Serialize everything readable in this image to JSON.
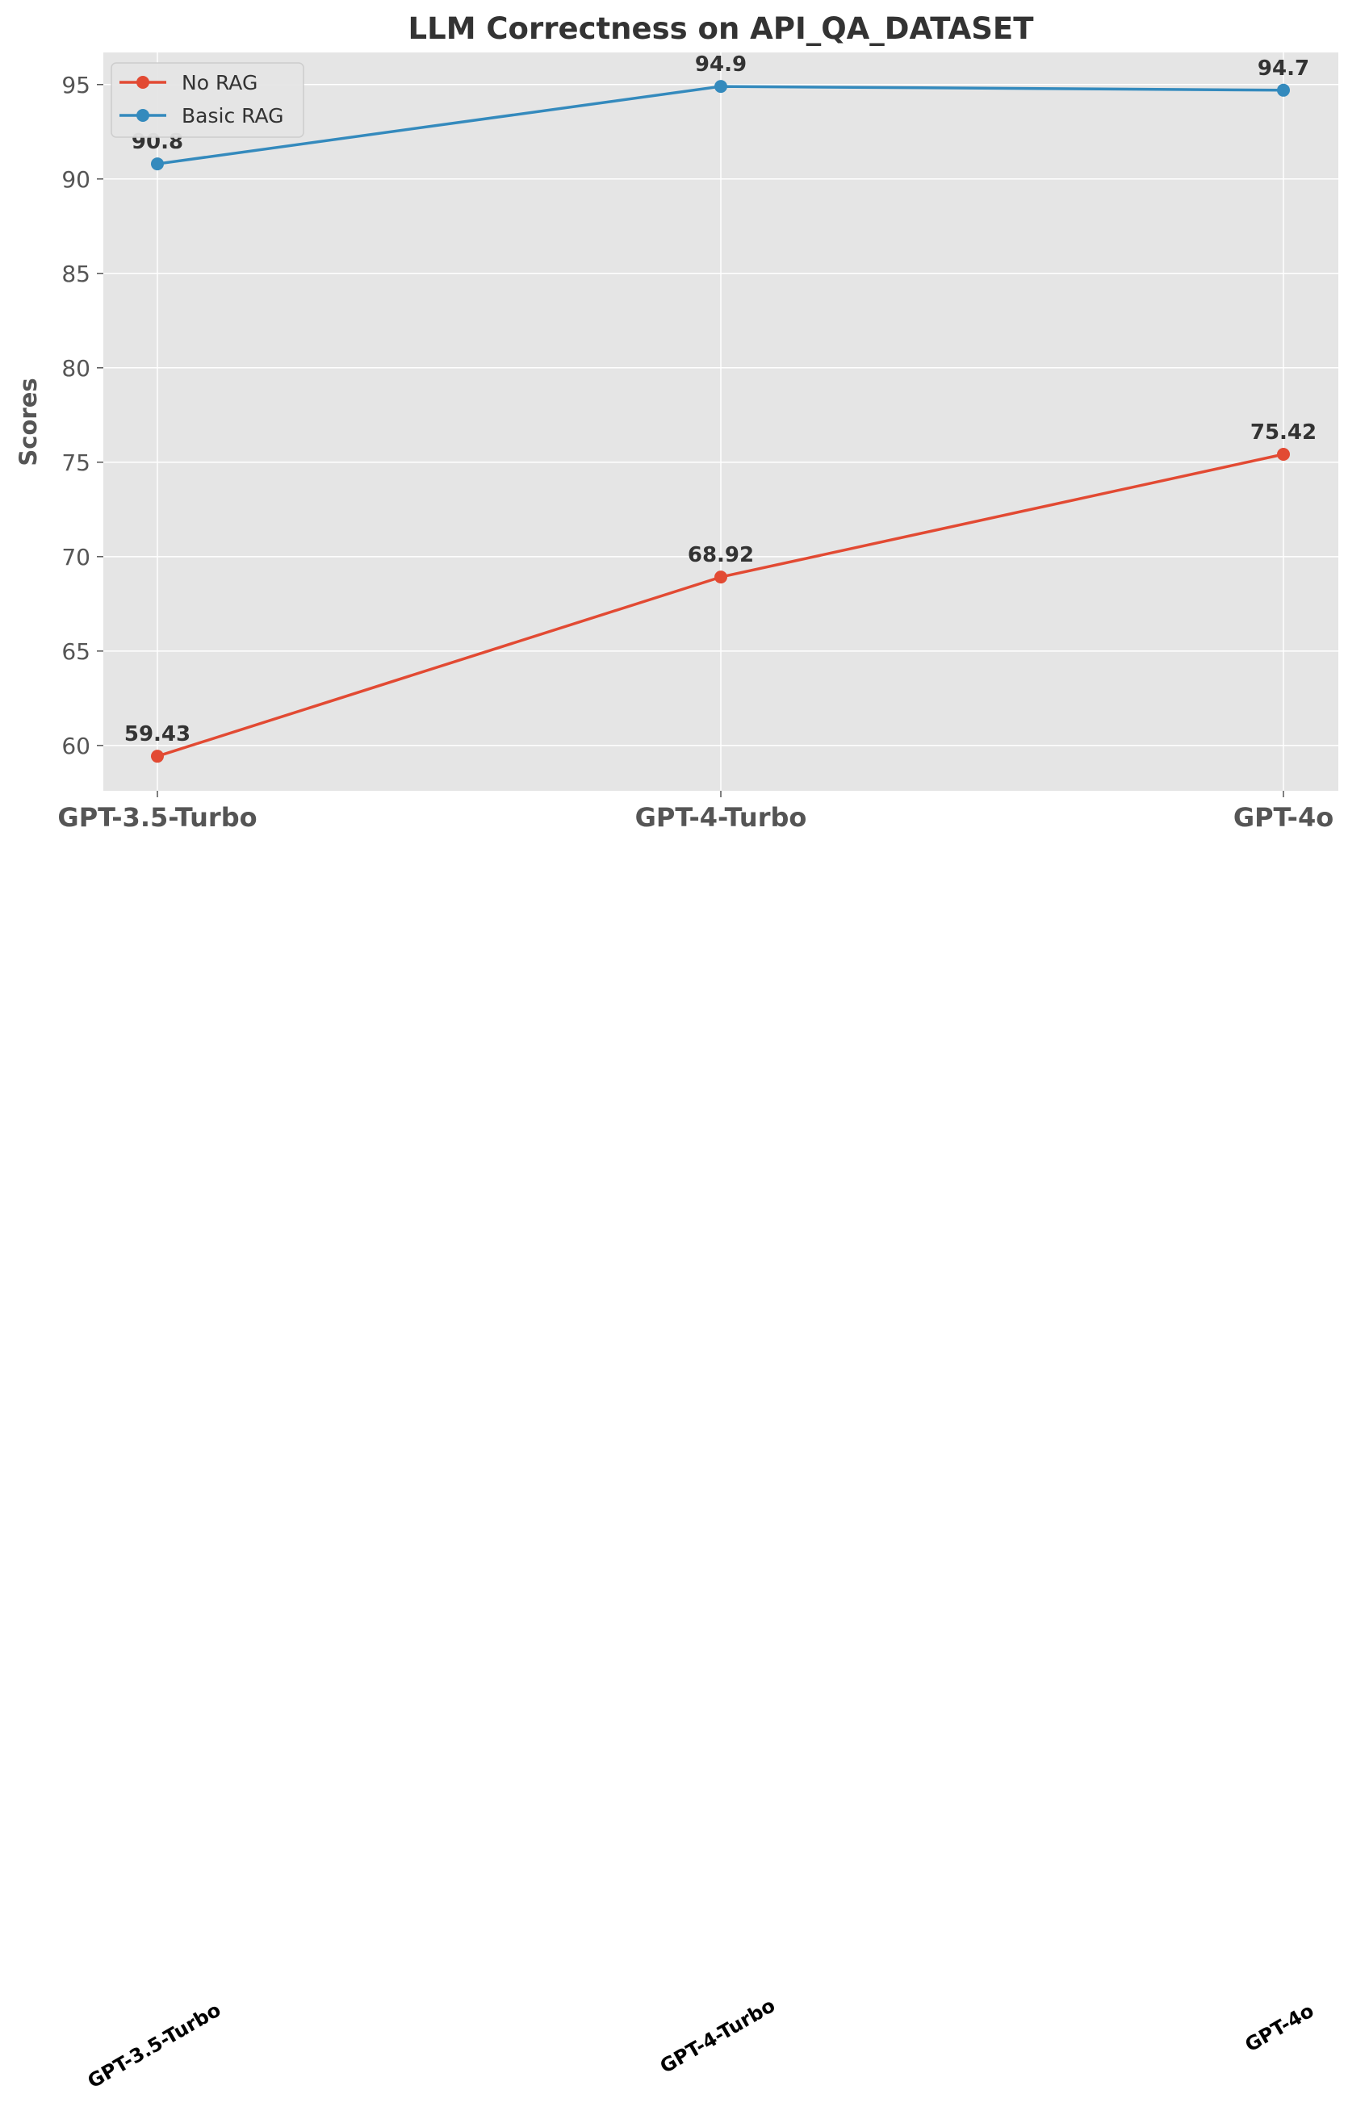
{
  "chart_data": {
    "type": "line",
    "title": "LLM Correctness on API_QA_DATASET",
    "xlabel": "",
    "ylabel": "Scores",
    "categories": [
      "GPT-3.5-Turbo",
      "GPT-4-Turbo",
      "GPT-4o"
    ],
    "series": [
      {
        "name": "No RAG",
        "color": "#E24A33",
        "values": [
          59.43,
          68.92,
          75.42
        ],
        "labels": [
          "59.43",
          "68.92",
          "75.42"
        ]
      },
      {
        "name": "Basic RAG",
        "color": "#348ABD",
        "values": [
          90.8,
          94.9,
          94.7
        ],
        "labels": [
          "90.8",
          "94.9",
          "94.7"
        ]
      }
    ],
    "ylim": [
      57.6,
      96.7
    ],
    "yticks": [
      60,
      65,
      70,
      75,
      80,
      85,
      90,
      95
    ],
    "ytick_labels": [
      "60",
      "65",
      "70",
      "75",
      "80",
      "85",
      "90",
      "95"
    ],
    "grid": true,
    "legend_position": "upper-left",
    "background_color": "#E5E5E5",
    "grid_color": "#FFFFFF",
    "secondary_xtick_labels": [
      "GPT-3.5-Turbo",
      "GPT-4-Turbo",
      "GPT-4o"
    ]
  }
}
